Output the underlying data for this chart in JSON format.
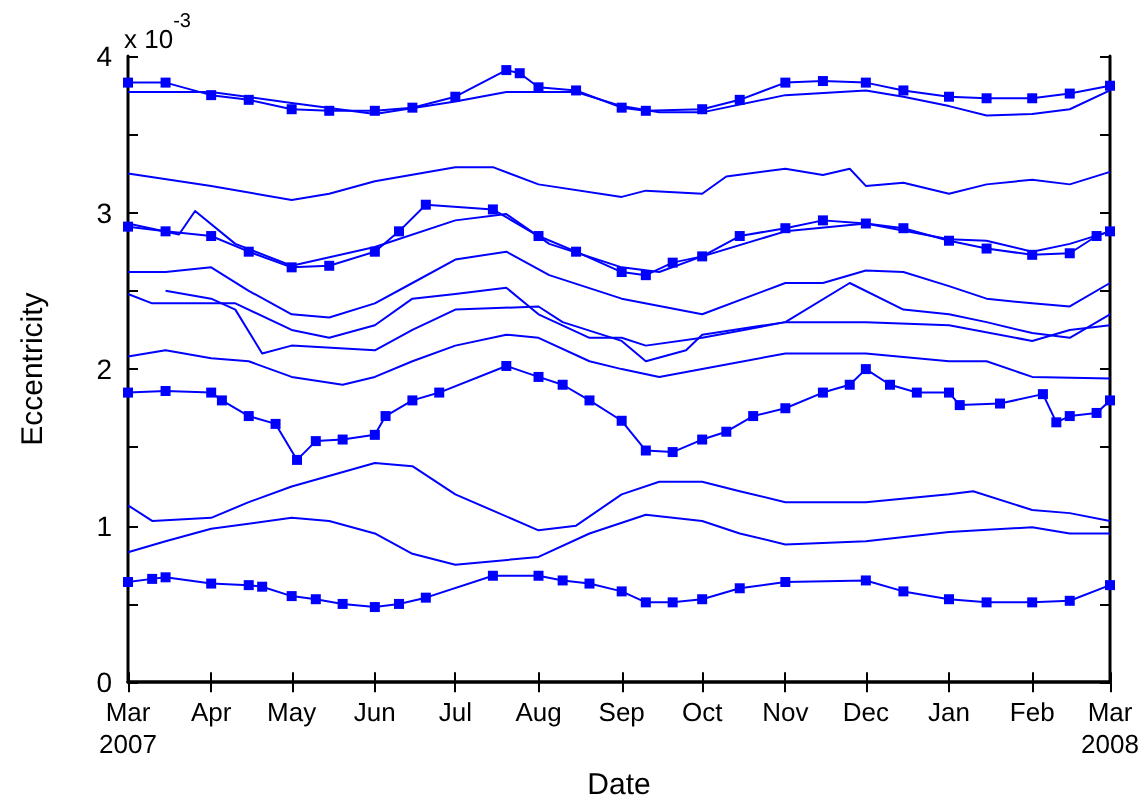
{
  "chart_data": {
    "type": "line",
    "xlabel": "Date",
    "ylabel": "Eccentricity",
    "annotations": [
      "x 10$^{-3}$"
    ],
    "xlim": [
      "2007-03-01",
      "2008-03-01"
    ],
    "xticks": [
      {
        "value": "2007-03-01",
        "label": "Mar\n2007"
      },
      {
        "value": "2007-04-01",
        "label": "Apr"
      },
      {
        "value": "2007-05-01",
        "label": "May"
      },
      {
        "value": "2007-06-01",
        "label": "Jun"
      },
      {
        "value": "2007-07-01",
        "label": "Jul"
      },
      {
        "value": "2007-08-01",
        "label": "Aug"
      },
      {
        "value": "2007-09-01",
        "label": "Sep"
      },
      {
        "value": "2007-10-01",
        "label": "Oct"
      },
      {
        "value": "2007-11-01",
        "label": "Nov"
      },
      {
        "value": "2007-12-01",
        "label": "Dec"
      },
      {
        "value": "2008-01-01",
        "label": "Jan"
      },
      {
        "value": "2008-02-01",
        "label": "Feb"
      },
      {
        "value": "2008-03-01",
        "label": "Mar\n2008"
      }
    ],
    "ylim": [
      0,
      4
    ],
    "yticks": [
      0,
      {
        "value": 0.5,
        "label": null
      },
      1,
      {
        "value": 1.5,
        "label": null
      },
      2,
      {
        "value": 2.5,
        "label": null
      },
      3,
      {
        "value": 3.5,
        "label": null
      },
      4
    ],
    "grid": false,
    "line_style": "solid",
    "series": [
      {
        "color": "#0000ff",
        "marker": "square",
        "x": [
          "2007-03-01",
          "2007-03-15",
          "2007-04-01",
          "2007-04-15",
          "2007-05-01",
          "2007-05-15",
          "2007-06-01",
          "2007-06-15",
          "2007-07-01",
          "2007-07-20",
          "2007-07-25",
          "2007-08-01",
          "2007-08-15",
          "2007-09-01",
          "2007-09-10",
          "2007-10-01",
          "2007-10-15",
          "2007-11-01",
          "2007-11-15",
          "2007-12-01",
          "2007-12-15",
          "2008-01-01",
          "2008-01-15",
          "2008-02-01",
          "2008-02-15",
          "2008-03-01"
        ],
        "values": [
          3.83,
          3.83,
          3.75,
          3.72,
          3.66,
          3.65,
          3.65,
          3.67,
          3.74,
          3.91,
          3.89,
          3.8,
          3.78,
          3.67,
          3.65,
          3.66,
          3.72,
          3.83,
          3.84,
          3.83,
          3.78,
          3.74,
          3.73,
          3.73,
          3.76,
          3.81
        ]
      },
      {
        "color": "#0000ff",
        "marker": "none",
        "x": [
          "2007-03-01",
          "2007-04-01",
          "2007-05-01",
          "2007-06-01",
          "2007-07-01",
          "2007-07-20",
          "2007-08-15",
          "2007-09-01",
          "2007-09-15",
          "2007-10-01",
          "2007-11-01",
          "2007-12-01",
          "2007-12-15",
          "2008-01-01",
          "2008-01-15",
          "2008-02-01",
          "2008-02-15",
          "2008-03-01"
        ],
        "values": [
          3.77,
          3.77,
          3.7,
          3.63,
          3.71,
          3.77,
          3.77,
          3.68,
          3.64,
          3.64,
          3.75,
          3.78,
          3.74,
          3.68,
          3.62,
          3.63,
          3.66,
          3.78
        ]
      },
      {
        "color": "#0000ff",
        "marker": "none",
        "x": [
          "2007-03-01",
          "2007-04-01",
          "2007-05-01",
          "2007-05-15",
          "2007-06-01",
          "2007-07-01",
          "2007-07-15",
          "2007-08-01",
          "2007-09-01",
          "2007-09-10",
          "2007-10-01",
          "2007-10-10",
          "2007-11-01",
          "2007-11-15",
          "2007-11-25",
          "2007-12-01",
          "2007-12-15",
          "2008-01-01",
          "2008-01-15",
          "2008-02-01",
          "2008-02-15",
          "2008-03-01"
        ],
        "values": [
          3.25,
          3.17,
          3.08,
          3.12,
          3.2,
          3.29,
          3.29,
          3.18,
          3.1,
          3.14,
          3.12,
          3.23,
          3.28,
          3.24,
          3.28,
          3.17,
          3.19,
          3.12,
          3.18,
          3.21,
          3.18,
          3.26
        ]
      },
      {
        "color": "#0000ff",
        "marker": "square",
        "x": [
          "2007-03-01",
          "2007-03-15",
          "2007-04-01",
          "2007-04-15",
          "2007-05-01",
          "2007-05-15",
          "2007-06-01",
          "2007-06-10",
          "2007-06-20",
          "2007-07-15",
          "2007-08-01",
          "2007-08-15",
          "2007-09-01",
          "2007-09-10",
          "2007-09-20",
          "2007-10-01",
          "2007-10-15",
          "2007-11-01",
          "2007-11-15",
          "2007-12-01",
          "2007-12-15",
          "2008-01-01",
          "2008-01-15",
          "2008-02-01",
          "2008-02-15",
          "2008-02-25",
          "2008-03-01"
        ],
        "values": [
          2.91,
          2.88,
          2.85,
          2.75,
          2.65,
          2.66,
          2.75,
          2.88,
          3.05,
          3.02,
          2.85,
          2.75,
          2.62,
          2.6,
          2.68,
          2.72,
          2.85,
          2.9,
          2.95,
          2.93,
          2.9,
          2.82,
          2.77,
          2.73,
          2.74,
          2.85,
          2.88
        ]
      },
      {
        "color": "#0000ff",
        "marker": "none",
        "x": [
          "2007-03-01",
          "2007-03-20",
          "2007-03-26",
          "2007-04-10",
          "2007-05-01",
          "2007-06-01",
          "2007-07-01",
          "2007-07-20",
          "2007-08-05",
          "2007-09-01",
          "2007-09-15",
          "2007-10-01",
          "2007-11-01",
          "2007-12-01",
          "2008-01-01",
          "2008-01-15",
          "2008-02-01",
          "2008-02-15",
          "2008-03-01"
        ],
        "values": [
          2.93,
          2.86,
          3.01,
          2.8,
          2.66,
          2.78,
          2.95,
          2.99,
          2.8,
          2.65,
          2.62,
          2.72,
          2.88,
          2.93,
          2.83,
          2.82,
          2.75,
          2.8,
          2.88
        ]
      },
      {
        "color": "#0000ff",
        "marker": "none",
        "x": [
          "2007-03-01",
          "2007-03-15",
          "2007-04-01",
          "2007-04-15",
          "2007-05-01",
          "2007-05-15",
          "2007-06-01",
          "2007-06-15",
          "2007-07-01",
          "2007-07-20",
          "2007-08-05",
          "2007-09-01",
          "2007-10-01",
          "2007-11-01",
          "2007-11-15",
          "2007-12-01",
          "2007-12-15",
          "2008-01-01",
          "2008-01-15",
          "2008-02-01",
          "2008-02-15",
          "2008-03-01"
        ],
        "values": [
          2.62,
          2.62,
          2.65,
          2.5,
          2.35,
          2.33,
          2.42,
          2.55,
          2.7,
          2.75,
          2.6,
          2.45,
          2.35,
          2.55,
          2.55,
          2.63,
          2.62,
          2.53,
          2.45,
          2.42,
          2.4,
          2.55
        ]
      },
      {
        "color": "#0000ff",
        "marker": "none",
        "x": [
          "2007-03-01",
          "2007-03-10",
          "2007-04-01",
          "2007-04-10",
          "2007-05-01",
          "2007-05-15",
          "2007-06-01",
          "2007-06-15",
          "2007-07-01",
          "2007-07-20",
          "2007-08-01",
          "2007-08-20",
          "2007-09-01",
          "2007-09-10",
          "2007-10-01",
          "2007-11-01",
          "2007-11-25",
          "2007-12-15",
          "2008-01-01",
          "2008-01-15",
          "2008-02-01",
          "2008-02-15",
          "2008-03-01"
        ],
        "values": [
          2.48,
          2.42,
          2.42,
          2.42,
          2.25,
          2.2,
          2.28,
          2.45,
          2.48,
          2.52,
          2.35,
          2.2,
          2.2,
          2.15,
          2.2,
          2.3,
          2.55,
          2.38,
          2.35,
          2.3,
          2.23,
          2.2,
          2.35
        ]
      },
      {
        "color": "#0000ff",
        "marker": "none",
        "x": [
          "2007-03-15",
          "2007-04-01",
          "2007-04-10",
          "2007-04-20",
          "2007-05-01",
          "2007-06-01",
          "2007-06-15",
          "2007-07-01",
          "2007-08-01",
          "2007-08-10",
          "2007-09-01",
          "2007-09-10",
          "2007-09-25",
          "2007-10-01",
          "2007-11-01",
          "2007-12-01",
          "2008-01-01",
          "2008-02-01",
          "2008-02-15",
          "2008-03-01"
        ],
        "values": [
          2.5,
          2.45,
          2.38,
          2.1,
          2.15,
          2.12,
          2.25,
          2.38,
          2.4,
          2.3,
          2.18,
          2.05,
          2.12,
          2.22,
          2.3,
          2.3,
          2.28,
          2.18,
          2.25,
          2.28
        ]
      },
      {
        "color": "#0000ff",
        "marker": "none",
        "x": [
          "2007-03-01",
          "2007-03-15",
          "2007-04-01",
          "2007-04-15",
          "2007-05-01",
          "2007-05-20",
          "2007-06-01",
          "2007-06-15",
          "2007-07-01",
          "2007-07-20",
          "2007-08-01",
          "2007-08-20",
          "2007-09-01",
          "2007-09-15",
          "2007-10-01",
          "2007-11-01",
          "2007-12-01",
          "2008-01-01",
          "2008-01-15",
          "2008-02-01",
          "2008-03-01"
        ],
        "values": [
          2.08,
          2.12,
          2.07,
          2.05,
          1.95,
          1.9,
          1.95,
          2.05,
          2.15,
          2.22,
          2.2,
          2.05,
          2.0,
          1.95,
          2.0,
          2.1,
          2.1,
          2.05,
          2.05,
          1.95,
          1.94
        ]
      },
      {
        "color": "#0000ff",
        "marker": "square",
        "x": [
          "2007-03-01",
          "2007-03-15",
          "2007-04-01",
          "2007-04-05",
          "2007-04-15",
          "2007-04-25",
          "2007-05-03",
          "2007-05-10",
          "2007-05-20",
          "2007-06-01",
          "2007-06-05",
          "2007-06-15",
          "2007-06-25",
          "2007-07-20",
          "2007-08-01",
          "2007-08-10",
          "2007-08-20",
          "2007-09-01",
          "2007-09-10",
          "2007-09-20",
          "2007-10-01",
          "2007-10-10",
          "2007-10-20",
          "2007-11-01",
          "2007-11-15",
          "2007-11-25",
          "2007-12-01",
          "2007-12-10",
          "2007-12-20",
          "2008-01-01",
          "2008-01-05",
          "2008-01-20",
          "2008-02-05",
          "2008-02-10",
          "2008-02-15",
          "2008-02-25",
          "2008-03-01"
        ],
        "values": [
          1.85,
          1.86,
          1.85,
          1.8,
          1.7,
          1.65,
          1.42,
          1.54,
          1.55,
          1.58,
          1.7,
          1.8,
          1.85,
          2.02,
          1.95,
          1.9,
          1.8,
          1.67,
          1.48,
          1.47,
          1.55,
          1.6,
          1.7,
          1.75,
          1.85,
          1.9,
          2.0,
          1.9,
          1.85,
          1.85,
          1.77,
          1.78,
          1.84,
          1.66,
          1.7,
          1.72,
          1.8
        ]
      },
      {
        "color": "#0000ff",
        "marker": "none",
        "x": [
          "2007-03-01",
          "2007-03-10",
          "2007-04-01",
          "2007-04-15",
          "2007-05-01",
          "2007-06-01",
          "2007-06-15",
          "2007-07-01",
          "2007-08-01",
          "2007-08-15",
          "2007-09-01",
          "2007-09-15",
          "2007-10-01",
          "2007-10-15",
          "2007-11-01",
          "2007-12-01",
          "2008-01-01",
          "2008-01-10",
          "2008-02-01",
          "2008-02-15",
          "2008-03-01"
        ],
        "values": [
          1.13,
          1.03,
          1.05,
          1.15,
          1.25,
          1.4,
          1.38,
          1.2,
          0.97,
          1.0,
          1.2,
          1.28,
          1.28,
          1.22,
          1.15,
          1.15,
          1.2,
          1.22,
          1.1,
          1.08,
          1.03
        ]
      },
      {
        "color": "#0000ff",
        "marker": "none",
        "x": [
          "2007-03-01",
          "2007-03-15",
          "2007-04-01",
          "2007-05-01",
          "2007-05-15",
          "2007-06-01",
          "2007-06-15",
          "2007-07-01",
          "2007-08-01",
          "2007-08-20",
          "2007-09-10",
          "2007-10-01",
          "2007-10-15",
          "2007-11-01",
          "2007-12-01",
          "2008-01-01",
          "2008-02-01",
          "2008-02-15",
          "2008-03-01"
        ],
        "values": [
          0.83,
          0.9,
          0.98,
          1.05,
          1.03,
          0.95,
          0.82,
          0.75,
          0.8,
          0.95,
          1.07,
          1.03,
          0.95,
          0.88,
          0.9,
          0.96,
          0.99,
          0.95,
          0.95
        ]
      },
      {
        "color": "#0000ff",
        "marker": "square",
        "x": [
          "2007-03-01",
          "2007-03-10",
          "2007-03-15",
          "2007-04-01",
          "2007-04-15",
          "2007-04-20",
          "2007-05-01",
          "2007-05-10",
          "2007-05-20",
          "2007-06-01",
          "2007-06-10",
          "2007-06-20",
          "2007-07-15",
          "2007-08-01",
          "2007-08-10",
          "2007-08-20",
          "2007-09-01",
          "2007-09-10",
          "2007-09-20",
          "2007-10-01",
          "2007-10-15",
          "2007-11-01",
          "2007-12-01",
          "2007-12-15",
          "2008-01-01",
          "2008-01-15",
          "2008-02-01",
          "2008-02-15",
          "2008-03-01"
        ],
        "values": [
          0.64,
          0.66,
          0.67,
          0.63,
          0.62,
          0.61,
          0.55,
          0.53,
          0.5,
          0.48,
          0.5,
          0.54,
          0.68,
          0.68,
          0.65,
          0.63,
          0.58,
          0.51,
          0.51,
          0.53,
          0.6,
          0.64,
          0.65,
          0.58,
          0.53,
          0.51,
          0.51,
          0.52,
          0.62
        ]
      }
    ]
  }
}
